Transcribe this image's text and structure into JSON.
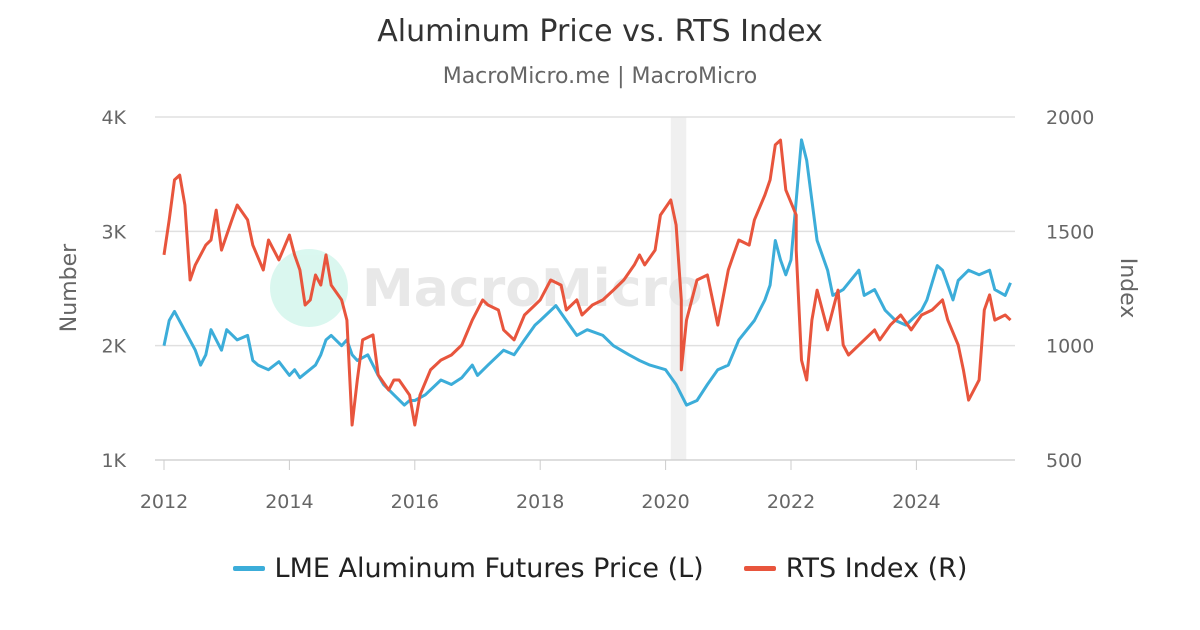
{
  "chart_data": {
    "type": "line",
    "title": "Aluminum Price vs. RTS Index",
    "subtitle": "MacroMicro.me | MacroMicro",
    "watermark": "MacroMicro",
    "x_ticks": [
      "2012",
      "2014",
      "2016",
      "2018",
      "2020",
      "2022",
      "2024"
    ],
    "y_left": {
      "label": "Number",
      "ticks": [
        "1K",
        "2K",
        "3K",
        "4K"
      ],
      "range": [
        1000,
        4000
      ]
    },
    "y_right": {
      "label": "Index",
      "ticks": [
        "500",
        "1000",
        "1500",
        "2000"
      ],
      "range": [
        500,
        2000
      ]
    },
    "grid": true,
    "legend_position": "bottom",
    "shaded_periods": [
      [
        "2020-02",
        "2020-04"
      ]
    ],
    "colors": {
      "aluminum": "#3cadd9",
      "rts": "#e8553d",
      "shade": "#f0f0f0"
    },
    "series": [
      {
        "name": "LME Aluminum Futures Price (L)",
        "axis": "left",
        "points": [
          [
            "2012-01",
            2000
          ],
          [
            "2012-02",
            2220
          ],
          [
            "2012-03",
            2300
          ],
          [
            "2012-05",
            2130
          ],
          [
            "2012-07",
            1960
          ],
          [
            "2012-08",
            1830
          ],
          [
            "2012-09",
            1920
          ],
          [
            "2012-10",
            2140
          ],
          [
            "2012-12",
            1960
          ],
          [
            "2013-01",
            2140
          ],
          [
            "2013-03",
            2050
          ],
          [
            "2013-05",
            2090
          ],
          [
            "2013-06",
            1870
          ],
          [
            "2013-07",
            1830
          ],
          [
            "2013-09",
            1790
          ],
          [
            "2013-11",
            1860
          ],
          [
            "2014-01",
            1740
          ],
          [
            "2014-02",
            1790
          ],
          [
            "2014-03",
            1720
          ],
          [
            "2014-06",
            1830
          ],
          [
            "2014-07",
            1920
          ],
          [
            "2014-08",
            2050
          ],
          [
            "2014-09",
            2090
          ],
          [
            "2014-11",
            2000
          ],
          [
            "2014-12",
            2050
          ],
          [
            "2015-01",
            1920
          ],
          [
            "2015-02",
            1870
          ],
          [
            "2015-04",
            1920
          ],
          [
            "2015-06",
            1740
          ],
          [
            "2015-07",
            1660
          ],
          [
            "2015-09",
            1570
          ],
          [
            "2015-11",
            1480
          ],
          [
            "2015-12",
            1520
          ],
          [
            "2016-01",
            1520
          ],
          [
            "2016-03",
            1570
          ],
          [
            "2016-06",
            1700
          ],
          [
            "2016-08",
            1660
          ],
          [
            "2016-10",
            1720
          ],
          [
            "2016-12",
            1830
          ],
          [
            "2017-01",
            1740
          ],
          [
            "2017-03",
            1830
          ],
          [
            "2017-06",
            1960
          ],
          [
            "2017-08",
            1920
          ],
          [
            "2017-10",
            2050
          ],
          [
            "2017-12",
            2180
          ],
          [
            "2018-01",
            2220
          ],
          [
            "2018-04",
            2350
          ],
          [
            "2018-06",
            2220
          ],
          [
            "2018-08",
            2090
          ],
          [
            "2018-10",
            2140
          ],
          [
            "2019-01",
            2090
          ],
          [
            "2019-03",
            2000
          ],
          [
            "2019-06",
            1920
          ],
          [
            "2019-08",
            1870
          ],
          [
            "2019-10",
            1830
          ],
          [
            "2020-01",
            1790
          ],
          [
            "2020-03",
            1660
          ],
          [
            "2020-05",
            1480
          ],
          [
            "2020-07",
            1520
          ],
          [
            "2020-09",
            1660
          ],
          [
            "2020-11",
            1790
          ],
          [
            "2021-01",
            1830
          ],
          [
            "2021-03",
            2050
          ],
          [
            "2021-06",
            2220
          ],
          [
            "2021-08",
            2400
          ],
          [
            "2021-09",
            2530
          ],
          [
            "2021-10",
            2920
          ],
          [
            "2021-11",
            2750
          ],
          [
            "2021-12",
            2620
          ],
          [
            "2022-01",
            2750
          ],
          [
            "2022-03",
            3800
          ],
          [
            "2022-04",
            3620
          ],
          [
            "2022-05",
            3270
          ],
          [
            "2022-06",
            2920
          ],
          [
            "2022-08",
            2660
          ],
          [
            "2022-09",
            2440
          ],
          [
            "2022-11",
            2490
          ],
          [
            "2023-02",
            2660
          ],
          [
            "2023-03",
            2440
          ],
          [
            "2023-05",
            2490
          ],
          [
            "2023-07",
            2310
          ],
          [
            "2023-09",
            2220
          ],
          [
            "2023-11",
            2180
          ],
          [
            "2024-02",
            2310
          ],
          [
            "2024-03",
            2400
          ],
          [
            "2024-05",
            2700
          ],
          [
            "2024-06",
            2660
          ],
          [
            "2024-08",
            2400
          ],
          [
            "2024-09",
            2570
          ],
          [
            "2024-11",
            2660
          ],
          [
            "2025-01",
            2620
          ],
          [
            "2025-03",
            2660
          ],
          [
            "2025-04",
            2490
          ],
          [
            "2025-06",
            2440
          ],
          [
            "2025-07",
            2550
          ]
        ]
      },
      {
        "name": "RTS Index (R)",
        "axis": "right",
        "points": [
          [
            "2012-01",
            1397
          ],
          [
            "2012-02",
            1550
          ],
          [
            "2012-03",
            1725
          ],
          [
            "2012-04",
            1746
          ],
          [
            "2012-05",
            1615
          ],
          [
            "2012-06",
            1287
          ],
          [
            "2012-07",
            1353
          ],
          [
            "2012-09",
            1440
          ],
          [
            "2012-10",
            1462
          ],
          [
            "2012-11",
            1593
          ],
          [
            "2012-12",
            1418
          ],
          [
            "2013-02",
            1550
          ],
          [
            "2013-03",
            1615
          ],
          [
            "2013-05",
            1550
          ],
          [
            "2013-06",
            1440
          ],
          [
            "2013-08",
            1331
          ],
          [
            "2013-09",
            1462
          ],
          [
            "2013-11",
            1375
          ],
          [
            "2014-01",
            1484
          ],
          [
            "2014-02",
            1397
          ],
          [
            "2014-03",
            1331
          ],
          [
            "2014-04",
            1178
          ],
          [
            "2014-05",
            1200
          ],
          [
            "2014-06",
            1309
          ],
          [
            "2014-07",
            1265
          ],
          [
            "2014-08",
            1397
          ],
          [
            "2014-09",
            1265
          ],
          [
            "2014-11",
            1200
          ],
          [
            "2014-12",
            1112
          ],
          [
            "2015-01",
            653
          ],
          [
            "2015-02",
            850
          ],
          [
            "2015-03",
            1025
          ],
          [
            "2015-05",
            1047
          ],
          [
            "2015-06",
            872
          ],
          [
            "2015-08",
            806
          ],
          [
            "2015-09",
            850
          ],
          [
            "2015-10",
            850
          ],
          [
            "2015-12",
            784
          ],
          [
            "2016-01",
            653
          ],
          [
            "2016-02",
            784
          ],
          [
            "2016-04",
            894
          ],
          [
            "2016-06",
            937
          ],
          [
            "2016-08",
            959
          ],
          [
            "2016-10",
            1003
          ],
          [
            "2016-12",
            1112
          ],
          [
            "2017-02",
            1200
          ],
          [
            "2017-03",
            1178
          ],
          [
            "2017-05",
            1156
          ],
          [
            "2017-06",
            1069
          ],
          [
            "2017-08",
            1025
          ],
          [
            "2017-10",
            1134
          ],
          [
            "2017-12",
            1178
          ],
          [
            "2018-01",
            1200
          ],
          [
            "2018-03",
            1287
          ],
          [
            "2018-05",
            1265
          ],
          [
            "2018-06",
            1156
          ],
          [
            "2018-08",
            1200
          ],
          [
            "2018-09",
            1134
          ],
          [
            "2018-11",
            1178
          ],
          [
            "2019-01",
            1200
          ],
          [
            "2019-03",
            1243
          ],
          [
            "2019-05",
            1287
          ],
          [
            "2019-07",
            1353
          ],
          [
            "2019-08",
            1397
          ],
          [
            "2019-09",
            1353
          ],
          [
            "2019-11",
            1418
          ],
          [
            "2019-12",
            1571
          ],
          [
            "2020-02",
            1637
          ],
          [
            "2020-03",
            1528
          ],
          [
            "2020-04",
            1200
          ],
          [
            "2020-04",
            894
          ],
          [
            "2020-05",
            1112
          ],
          [
            "2020-07",
            1287
          ],
          [
            "2020-09",
            1309
          ],
          [
            "2020-10",
            1200
          ],
          [
            "2020-11",
            1090
          ],
          [
            "2021-01",
            1331
          ],
          [
            "2021-02",
            1397
          ],
          [
            "2021-03",
            1462
          ],
          [
            "2021-05",
            1440
          ],
          [
            "2021-06",
            1550
          ],
          [
            "2021-08",
            1659
          ],
          [
            "2021-09",
            1725
          ],
          [
            "2021-10",
            1878
          ],
          [
            "2021-11",
            1899
          ],
          [
            "2021-12",
            1681
          ],
          [
            "2022-02",
            1571
          ],
          [
            "2022-02",
            1418
          ],
          [
            "2022-03",
            937
          ],
          [
            "2022-04",
            850
          ],
          [
            "2022-05",
            1112
          ],
          [
            "2022-06",
            1243
          ],
          [
            "2022-08",
            1069
          ],
          [
            "2022-09",
            1156
          ],
          [
            "2022-10",
            1243
          ],
          [
            "2022-11",
            1003
          ],
          [
            "2022-12",
            959
          ],
          [
            "2023-03",
            1025
          ],
          [
            "2023-05",
            1069
          ],
          [
            "2023-06",
            1025
          ],
          [
            "2023-08",
            1090
          ],
          [
            "2023-10",
            1134
          ],
          [
            "2023-12",
            1069
          ],
          [
            "2024-02",
            1134
          ],
          [
            "2024-04",
            1156
          ],
          [
            "2024-06",
            1200
          ],
          [
            "2024-07",
            1112
          ],
          [
            "2024-09",
            1003
          ],
          [
            "2024-10",
            894
          ],
          [
            "2024-11",
            762
          ],
          [
            "2025-01",
            850
          ],
          [
            "2025-02",
            1156
          ],
          [
            "2025-03",
            1222
          ],
          [
            "2025-04",
            1112
          ],
          [
            "2025-06",
            1134
          ],
          [
            "2025-07",
            1112
          ]
        ]
      }
    ]
  }
}
